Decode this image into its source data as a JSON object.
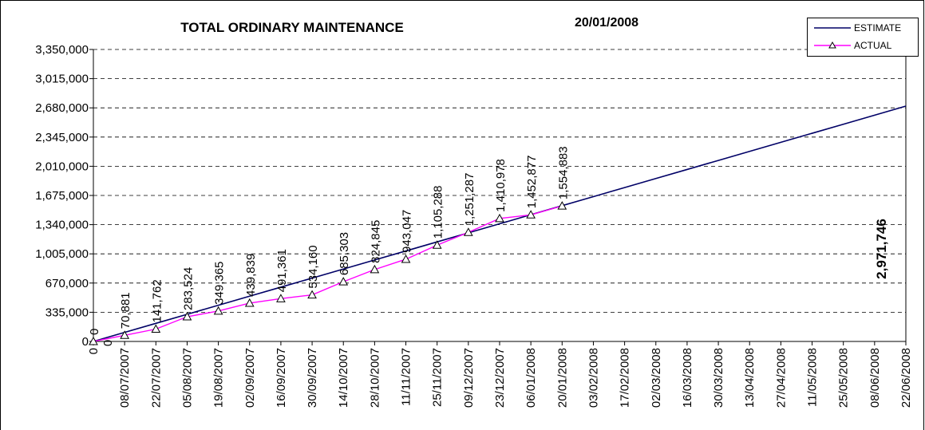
{
  "chart_data": {
    "type": "line",
    "title": "TOTAL ORDINARY MAINTENANCE",
    "subtitle": "20/01/2008",
    "categories": [
      "0",
      "08/07/2007",
      "22/07/2007",
      "05/08/2007",
      "19/08/2007",
      "02/09/2007",
      "16/09/2007",
      "30/09/2007",
      "14/10/2007",
      "28/10/2007",
      "11/11/2007",
      "25/11/2007",
      "09/12/2007",
      "23/12/2007",
      "06/01/2008",
      "20/01/2008",
      "03/02/2008",
      "17/02/2008",
      "02/03/2008",
      "16/03/2008",
      "30/03/2008",
      "13/04/2008",
      "27/04/2008",
      "11/05/2008",
      "25/05/2008",
      "08/06/2008",
      "22/06/2008"
    ],
    "series": [
      {
        "name": "ESTIMATE",
        "color": "#000066",
        "marker": "none",
        "values": [
          0,
          103846,
          207692,
          311538,
          415385,
          519231,
          623077,
          726923,
          830769,
          934615,
          1038462,
          1142308,
          1246154,
          1350000,
          1453846,
          1557692,
          1661538,
          1765385,
          1869231,
          1973077,
          2076923,
          2180769,
          2284615,
          2388462,
          2492308,
          2596154,
          2700000
        ]
      },
      {
        "name": "ACTUAL",
        "color": "#ff00ff",
        "marker": "triangle",
        "values": [
          0,
          70881,
          141762,
          283524,
          349365,
          439839,
          491361,
          534160,
          685303,
          824845,
          943047,
          1105288,
          1251287,
          1410978,
          1452877,
          1554883,
          null,
          null,
          null,
          null,
          null,
          null,
          null,
          null,
          null,
          null,
          null
        ],
        "value_labels": [
          "0",
          "70,881",
          "141,762",
          "283,524",
          "349,365",
          "439,839",
          "491,361",
          "534,160",
          "685,303",
          "824,845",
          "943,047",
          "1,105,288",
          "1,251,287",
          "1,410,978",
          "1,452,877",
          "1,554,883",
          null,
          null,
          null,
          null,
          null,
          null,
          null,
          null,
          null,
          null,
          null
        ]
      }
    ],
    "ylim": [
      0,
      3350000
    ],
    "yticks": [
      0,
      {
        "value": 335000,
        "label": "335,000"
      },
      {
        "value": 670000,
        "label": "670,000"
      },
      {
        "value": 1005000,
        "label": "1,005,000"
      },
      {
        "value": 1340000,
        "label": "1,340,000"
      },
      {
        "value": 1675000,
        "label": "1,675,000"
      },
      {
        "value": 2010000,
        "label": "2,010,000"
      },
      {
        "value": 2345000,
        "label": "2,345,000"
      },
      {
        "value": 2680000,
        "label": "2,680,000"
      },
      {
        "value": 3015000,
        "label": "3,015,000"
      },
      {
        "value": 3350000,
        "label": "3,350,000"
      }
    ],
    "grid": true,
    "legend": "top-right",
    "annotations": [
      "0",
      "2,971,746"
    ]
  }
}
